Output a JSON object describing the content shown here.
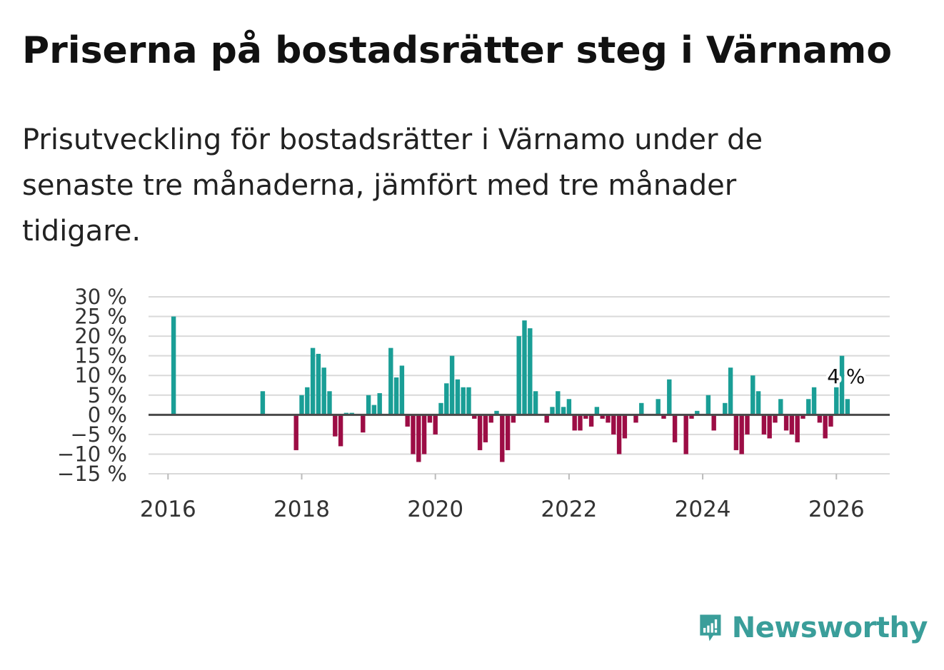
{
  "header": {
    "title": "Priserna på bostadsrätter steg i Värnamo",
    "subtitle": "Prisutveckling för bostadsrätter i Värnamo under de senaste tre månaderna, jämfört med tre månader tidigare."
  },
  "brand": {
    "name": "Newsworthy",
    "color": "#3a9e9a",
    "logo_icon": "newsworthy-logo-icon"
  },
  "colors": {
    "positive": "#1a9e96",
    "negative": "#9c0d45",
    "grid": "#d9d9d9",
    "zero_line": "#4a4a4a"
  },
  "chart_data": {
    "type": "bar",
    "title": "Priserna på bostadsrätter steg i Värnamo",
    "xlabel": "",
    "ylabel": "",
    "ylim": [
      -15,
      30
    ],
    "y_ticks": [
      30,
      25,
      20,
      15,
      10,
      5,
      0,
      -5,
      -10,
      -15
    ],
    "y_tick_labels": [
      "30 %",
      "25 %",
      "20 %",
      "15 %",
      "10 %",
      "5 %",
      "0 %",
      "−5 %",
      "−10 %",
      "−15 %"
    ],
    "x_ticks": [
      2016,
      2018,
      2020,
      2022,
      2024,
      2026
    ],
    "x_tick_labels": [
      "2016",
      "2018",
      "2020",
      "2022",
      "2024",
      "2026"
    ],
    "grid": true,
    "annotation": {
      "text": "4 %",
      "date": "2026-03"
    },
    "series": [
      {
        "name": "Prisutveckling",
        "unit": "%",
        "points": [
          {
            "date": "2016-02",
            "value": 25
          },
          {
            "date": "2017-06",
            "value": 6
          },
          {
            "date": "2017-12",
            "value": -9
          },
          {
            "date": "2018-01",
            "value": 5
          },
          {
            "date": "2018-02",
            "value": 7
          },
          {
            "date": "2018-03",
            "value": 17
          },
          {
            "date": "2018-04",
            "value": 15.5
          },
          {
            "date": "2018-05",
            "value": 12
          },
          {
            "date": "2018-06",
            "value": 6
          },
          {
            "date": "2018-07",
            "value": -5.5
          },
          {
            "date": "2018-08",
            "value": -8
          },
          {
            "date": "2018-09",
            "value": 0.5
          },
          {
            "date": "2018-10",
            "value": 0.5
          },
          {
            "date": "2018-12",
            "value": -4.5
          },
          {
            "date": "2019-01",
            "value": 5
          },
          {
            "date": "2019-02",
            "value": 2.5
          },
          {
            "date": "2019-03",
            "value": 5.5
          },
          {
            "date": "2019-05",
            "value": 17
          },
          {
            "date": "2019-06",
            "value": 9.5
          },
          {
            "date": "2019-07",
            "value": 12.5
          },
          {
            "date": "2019-08",
            "value": -3
          },
          {
            "date": "2019-09",
            "value": -10
          },
          {
            "date": "2019-10",
            "value": -12
          },
          {
            "date": "2019-11",
            "value": -10
          },
          {
            "date": "2019-12",
            "value": -2
          },
          {
            "date": "2020-01",
            "value": -5
          },
          {
            "date": "2020-02",
            "value": 3
          },
          {
            "date": "2020-03",
            "value": 8
          },
          {
            "date": "2020-04",
            "value": 15
          },
          {
            "date": "2020-05",
            "value": 9
          },
          {
            "date": "2020-06",
            "value": 7
          },
          {
            "date": "2020-07",
            "value": 7
          },
          {
            "date": "2020-08",
            "value": -1
          },
          {
            "date": "2020-09",
            "value": -9
          },
          {
            "date": "2020-10",
            "value": -7
          },
          {
            "date": "2020-11",
            "value": -2
          },
          {
            "date": "2020-12",
            "value": 1
          },
          {
            "date": "2021-01",
            "value": -12
          },
          {
            "date": "2021-02",
            "value": -9
          },
          {
            "date": "2021-03",
            "value": -2
          },
          {
            "date": "2021-04",
            "value": 20
          },
          {
            "date": "2021-05",
            "value": 24
          },
          {
            "date": "2021-06",
            "value": 22
          },
          {
            "date": "2021-07",
            "value": 6
          },
          {
            "date": "2021-09",
            "value": -2
          },
          {
            "date": "2021-10",
            "value": 2
          },
          {
            "date": "2021-11",
            "value": 6
          },
          {
            "date": "2021-12",
            "value": 2
          },
          {
            "date": "2022-01",
            "value": 4
          },
          {
            "date": "2022-02",
            "value": -4
          },
          {
            "date": "2022-03",
            "value": -4
          },
          {
            "date": "2022-04",
            "value": -1
          },
          {
            "date": "2022-05",
            "value": -3
          },
          {
            "date": "2022-06",
            "value": 2
          },
          {
            "date": "2022-07",
            "value": -1
          },
          {
            "date": "2022-08",
            "value": -2
          },
          {
            "date": "2022-09",
            "value": -5
          },
          {
            "date": "2022-10",
            "value": -10
          },
          {
            "date": "2022-11",
            "value": -6
          },
          {
            "date": "2023-01",
            "value": -2
          },
          {
            "date": "2023-02",
            "value": 3
          },
          {
            "date": "2023-05",
            "value": 4
          },
          {
            "date": "2023-06",
            "value": -1
          },
          {
            "date": "2023-07",
            "value": 9
          },
          {
            "date": "2023-08",
            "value": -7
          },
          {
            "date": "2023-10",
            "value": -10
          },
          {
            "date": "2023-11",
            "value": -1
          },
          {
            "date": "2023-12",
            "value": 1
          },
          {
            "date": "2024-02",
            "value": 5
          },
          {
            "date": "2024-03",
            "value": -4
          },
          {
            "date": "2024-05",
            "value": 3
          },
          {
            "date": "2024-06",
            "value": 12
          },
          {
            "date": "2024-07",
            "value": -9
          },
          {
            "date": "2024-08",
            "value": -10
          },
          {
            "date": "2024-09",
            "value": -5
          },
          {
            "date": "2024-10",
            "value": 10
          },
          {
            "date": "2024-11",
            "value": 6
          },
          {
            "date": "2024-12",
            "value": -5
          },
          {
            "date": "2025-01",
            "value": -6
          },
          {
            "date": "2025-02",
            "value": -2
          },
          {
            "date": "2025-03",
            "value": 4
          },
          {
            "date": "2025-04",
            "value": -4
          },
          {
            "date": "2025-05",
            "value": -5
          },
          {
            "date": "2025-06",
            "value": -7
          },
          {
            "date": "2025-07",
            "value": -1
          },
          {
            "date": "2025-08",
            "value": 4
          },
          {
            "date": "2025-09",
            "value": 7
          },
          {
            "date": "2025-10",
            "value": -2
          },
          {
            "date": "2025-11",
            "value": -6
          },
          {
            "date": "2025-12",
            "value": -3
          },
          {
            "date": "2026-01",
            "value": 7
          },
          {
            "date": "2026-02",
            "value": 15
          },
          {
            "date": "2026-03",
            "value": 4
          }
        ]
      }
    ]
  }
}
